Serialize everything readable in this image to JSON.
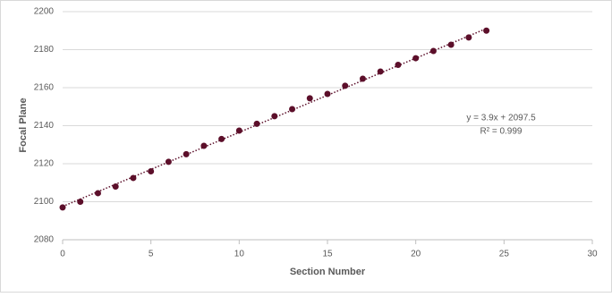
{
  "chart_data": {
    "type": "scatter",
    "xlabel": "Section Number",
    "ylabel": "Focal Plane",
    "annotations": [
      "y = 3.9x + 2097.5",
      "R² = 0.999"
    ],
    "x": [
      0,
      1,
      2,
      3,
      4,
      5,
      6,
      7,
      8,
      9,
      10,
      11,
      12,
      13,
      14,
      15,
      16,
      17,
      18,
      19,
      20,
      21,
      22,
      23,
      24
    ],
    "series": [
      {
        "color": "#5c0f2a",
        "values": [
          2097,
          2100,
          2104.5,
          2108,
          2112.5,
          2116,
          2121,
          2125,
          2129.4,
          2133,
          2137.4,
          2141,
          2145,
          2148.7,
          2154.4,
          2156.7,
          2161,
          2164.7,
          2168.5,
          2172,
          2175.5,
          2179.3,
          2182.6,
          2186.4,
          2190
        ]
      }
    ],
    "trendline": {
      "x": [
        0,
        24
      ],
      "values": [
        2097.5,
        2191.1
      ],
      "color": "#5c0f2a"
    },
    "xlim": [
      0,
      30
    ],
    "xticks": [
      0,
      5,
      10,
      15,
      20,
      25,
      30
    ],
    "ylim": [
      2080,
      2200
    ],
    "yticks": [
      2080,
      2100,
      2120,
      2140,
      2160,
      2180,
      2200
    ],
    "grid": true
  }
}
